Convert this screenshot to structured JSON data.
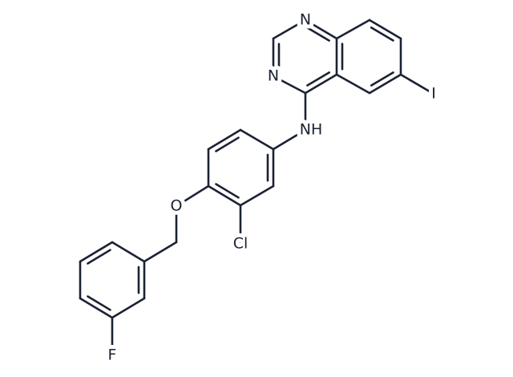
{
  "atoms": {
    "n1": "N",
    "n3": "N",
    "iodine": "I",
    "amine": "NH",
    "oxygen": "O",
    "chlorine": "Cl",
    "fluorine": "F"
  }
}
